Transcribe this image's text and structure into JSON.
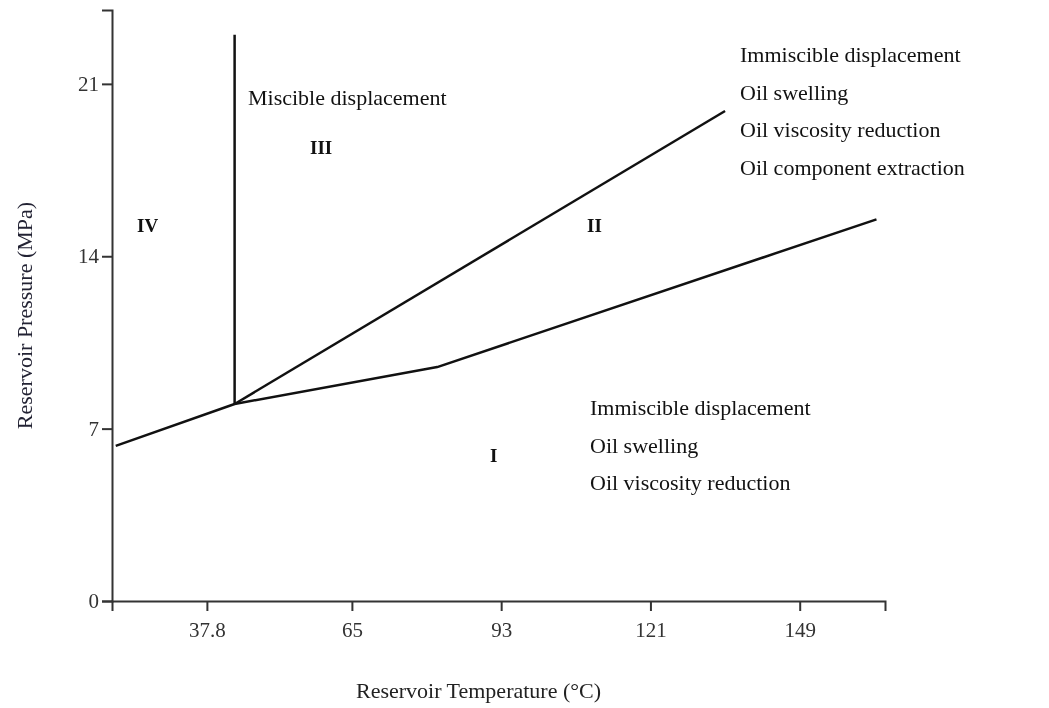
{
  "chart_data": {
    "type": "line",
    "xlabel": "Reservoir Temperature (°C)",
    "ylabel": "Reservoir Pressure (MPa)",
    "xlim": [
      20,
      165
    ],
    "xticks": [
      37.8,
      65,
      93,
      121,
      149
    ],
    "ylim": [
      0,
      24
    ],
    "yticks": [
      0,
      7,
      14,
      21
    ],
    "grid": false,
    "marker": "none",
    "line_style": "solid",
    "series": [
      {
        "color": "#111111",
        "x": [
          20.7,
          43,
          81,
          163.4
        ],
        "values": [
          6.3,
          8,
          9.5,
          15.5
        ]
      },
      {
        "color": "#111111",
        "x": [
          43,
          135
        ],
        "values": [
          8,
          19.9
        ]
      },
      {
        "color": "#111111",
        "x": [
          43,
          43
        ],
        "values": [
          8,
          23
        ]
      }
    ],
    "annotations": [
      "Miscible displacement",
      "III",
      "IV",
      "II",
      "I",
      "Immiscible displacement\nOil swelling\nOil viscosity reduction\nOil component extraction",
      "Immiscible displacement\nOil swelling\nOil viscosity reduction"
    ]
  }
}
